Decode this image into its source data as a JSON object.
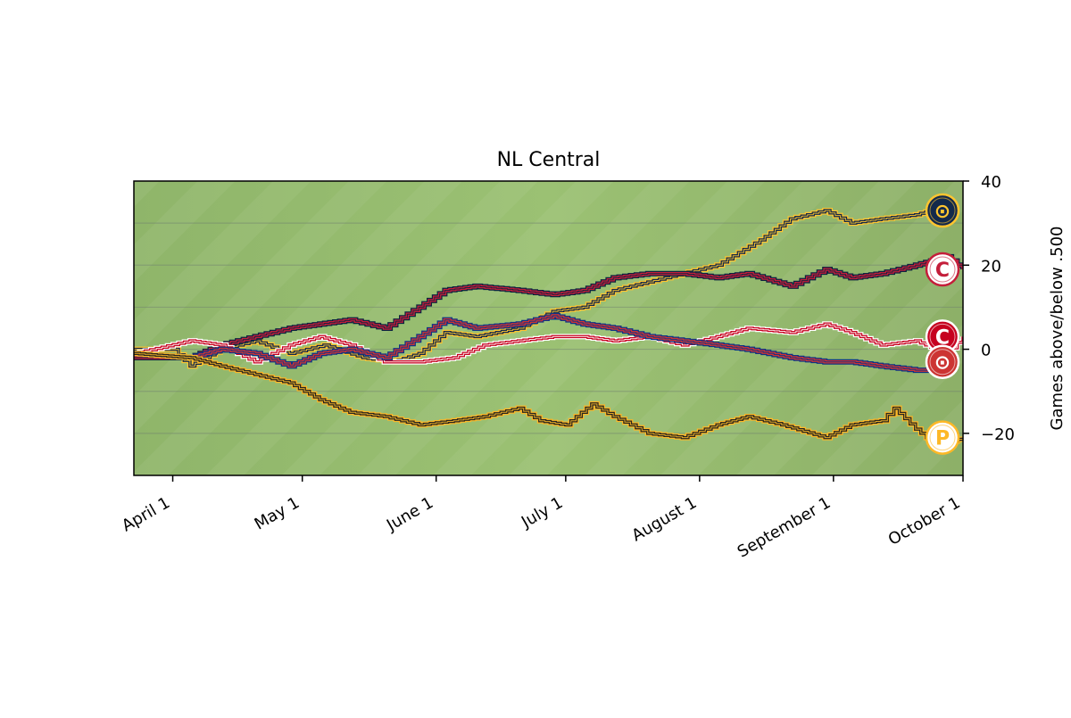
{
  "chart_data": {
    "type": "line",
    "title": "NL Central",
    "xlabel": "",
    "ylabel": "Games above/below .500",
    "ylim": [
      -30,
      40
    ],
    "xlim": [
      "2021-03-23",
      "2021-10-01"
    ],
    "y_ticks": [
      -20,
      0,
      20,
      40
    ],
    "y_tick_labels": [
      "−20",
      "0",
      "20",
      "40"
    ],
    "x_ticks": [
      {
        "date": "2021-04-01",
        "label": "April  1"
      },
      {
        "date": "2021-05-01",
        "label": "May  1"
      },
      {
        "date": "2021-06-01",
        "label": "June  1"
      },
      {
        "date": "2021-07-01",
        "label": "July  1"
      },
      {
        "date": "2021-08-01",
        "label": "August  1"
      },
      {
        "date": "2021-09-01",
        "label": "September  1"
      },
      {
        "date": "2021-10-01",
        "label": "October  1"
      }
    ],
    "y_axis_side": "right",
    "grid": true,
    "background": "green grass field",
    "series": [
      {
        "team": "brewers",
        "colors": {
          "main": "#13294b",
          "accent": "#ffc52f"
        },
        "points": [
          [
            "2021-03-23",
            0
          ],
          [
            "2021-04-01",
            0
          ],
          [
            "2021-04-05",
            -4
          ],
          [
            "2021-04-12",
            0
          ],
          [
            "2021-04-20",
            2
          ],
          [
            "2021-04-28",
            -1
          ],
          [
            "2021-05-06",
            1
          ],
          [
            "2021-05-15",
            -2
          ],
          [
            "2021-05-22",
            -3
          ],
          [
            "2021-05-28",
            -1
          ],
          [
            "2021-06-03",
            4
          ],
          [
            "2021-06-10",
            3
          ],
          [
            "2021-06-20",
            5
          ],
          [
            "2021-06-28",
            9
          ],
          [
            "2021-07-05",
            10
          ],
          [
            "2021-07-12",
            14
          ],
          [
            "2021-07-20",
            16
          ],
          [
            "2021-07-28",
            18
          ],
          [
            "2021-08-05",
            20
          ],
          [
            "2021-08-15",
            26
          ],
          [
            "2021-08-22",
            31
          ],
          [
            "2021-08-30",
            33
          ],
          [
            "2021-09-05",
            30
          ],
          [
            "2021-09-12",
            31
          ],
          [
            "2021-09-20",
            32
          ],
          [
            "2021-09-27",
            34
          ]
        ]
      },
      {
        "team": "cardinals",
        "colors": {
          "main": "#c41e3a",
          "accent": "#0c2340"
        },
        "points": [
          [
            "2021-03-23",
            -2
          ],
          [
            "2021-04-05",
            -2
          ],
          [
            "2021-04-12",
            1
          ],
          [
            "2021-04-20",
            3
          ],
          [
            "2021-04-28",
            5
          ],
          [
            "2021-05-05",
            6
          ],
          [
            "2021-05-12",
            7
          ],
          [
            "2021-05-20",
            5
          ],
          [
            "2021-05-28",
            10
          ],
          [
            "2021-06-03",
            14
          ],
          [
            "2021-06-10",
            15
          ],
          [
            "2021-06-20",
            14
          ],
          [
            "2021-06-28",
            13
          ],
          [
            "2021-07-05",
            14
          ],
          [
            "2021-07-12",
            17
          ],
          [
            "2021-07-20",
            18
          ],
          [
            "2021-07-28",
            18
          ],
          [
            "2021-08-05",
            17
          ],
          [
            "2021-08-12",
            18
          ],
          [
            "2021-08-22",
            15
          ],
          [
            "2021-08-30",
            19
          ],
          [
            "2021-09-05",
            17
          ],
          [
            "2021-09-12",
            18
          ],
          [
            "2021-09-20",
            20
          ],
          [
            "2021-09-27",
            22
          ],
          [
            "2021-10-01",
            19
          ]
        ]
      },
      {
        "team": "reds",
        "colors": {
          "main": "#c6011f",
          "accent": "#ffffff"
        },
        "points": [
          [
            "2021-03-23",
            -1
          ],
          [
            "2021-04-05",
            2
          ],
          [
            "2021-04-12",
            1
          ],
          [
            "2021-04-20",
            -3
          ],
          [
            "2021-04-28",
            1
          ],
          [
            "2021-05-05",
            3
          ],
          [
            "2021-05-12",
            1
          ],
          [
            "2021-05-20",
            -3
          ],
          [
            "2021-05-28",
            -3
          ],
          [
            "2021-06-05",
            -2
          ],
          [
            "2021-06-12",
            1
          ],
          [
            "2021-06-20",
            2
          ],
          [
            "2021-06-28",
            3
          ],
          [
            "2021-07-05",
            3
          ],
          [
            "2021-07-12",
            2
          ],
          [
            "2021-07-20",
            3
          ],
          [
            "2021-07-28",
            1
          ],
          [
            "2021-08-05",
            3
          ],
          [
            "2021-08-12",
            5
          ],
          [
            "2021-08-22",
            4
          ],
          [
            "2021-08-30",
            6
          ],
          [
            "2021-09-05",
            4
          ],
          [
            "2021-09-12",
            1
          ],
          [
            "2021-09-20",
            2
          ],
          [
            "2021-09-27",
            -1
          ],
          [
            "2021-10-01",
            3
          ]
        ]
      },
      {
        "team": "cubs",
        "colors": {
          "main": "#cc3433",
          "accent": "#0e3386"
        },
        "points": [
          [
            "2021-03-23",
            -1
          ],
          [
            "2021-04-05",
            -2
          ],
          [
            "2021-04-12",
            0
          ],
          [
            "2021-04-20",
            -1
          ],
          [
            "2021-04-28",
            -4
          ],
          [
            "2021-05-05",
            -1
          ],
          [
            "2021-05-12",
            0
          ],
          [
            "2021-05-20",
            -2
          ],
          [
            "2021-05-28",
            3
          ],
          [
            "2021-06-03",
            7
          ],
          [
            "2021-06-10",
            5
          ],
          [
            "2021-06-20",
            6
          ],
          [
            "2021-06-28",
            8
          ],
          [
            "2021-07-05",
            6
          ],
          [
            "2021-07-12",
            5
          ],
          [
            "2021-07-20",
            3
          ],
          [
            "2021-07-28",
            2
          ],
          [
            "2021-08-05",
            1
          ],
          [
            "2021-08-12",
            0
          ],
          [
            "2021-08-22",
            -2
          ],
          [
            "2021-08-30",
            -3
          ],
          [
            "2021-09-05",
            -3
          ],
          [
            "2021-09-12",
            -4
          ],
          [
            "2021-09-20",
            -5
          ],
          [
            "2021-09-27",
            -5
          ]
        ]
      },
      {
        "team": "pirates",
        "colors": {
          "main": "#27251f",
          "accent": "#fdb827"
        },
        "points": [
          [
            "2021-03-23",
            -1
          ],
          [
            "2021-04-05",
            -2
          ],
          [
            "2021-04-12",
            -4
          ],
          [
            "2021-04-20",
            -6
          ],
          [
            "2021-04-28",
            -8
          ],
          [
            "2021-05-05",
            -12
          ],
          [
            "2021-05-12",
            -15
          ],
          [
            "2021-05-20",
            -16
          ],
          [
            "2021-05-28",
            -18
          ],
          [
            "2021-06-05",
            -17
          ],
          [
            "2021-06-12",
            -16
          ],
          [
            "2021-06-20",
            -14
          ],
          [
            "2021-06-25",
            -17
          ],
          [
            "2021-07-01",
            -18
          ],
          [
            "2021-07-07",
            -13
          ],
          [
            "2021-07-12",
            -16
          ],
          [
            "2021-07-20",
            -20
          ],
          [
            "2021-07-28",
            -21
          ],
          [
            "2021-08-05",
            -18
          ],
          [
            "2021-08-12",
            -16
          ],
          [
            "2021-08-20",
            -18
          ],
          [
            "2021-08-30",
            -21
          ],
          [
            "2021-09-05",
            -18
          ],
          [
            "2021-09-12",
            -17
          ],
          [
            "2021-09-15",
            -14
          ],
          [
            "2021-09-20",
            -19
          ],
          [
            "2021-09-25",
            -23
          ],
          [
            "2021-10-01",
            -21
          ]
        ]
      }
    ],
    "team_logos": [
      {
        "team": "brewers",
        "y": 33,
        "glyph": "⊙",
        "icon": "brewers-logo-icon",
        "colors": {
          "bg": "#13294b",
          "fg": "#ffc52f"
        }
      },
      {
        "team": "cardinals",
        "y": 19,
        "glyph": "C",
        "icon": "cardinals-logo-icon",
        "colors": {
          "bg": "#ffffff",
          "fg": "#c41e3a"
        }
      },
      {
        "team": "reds",
        "y": 3,
        "glyph": "C",
        "icon": "reds-logo-icon",
        "colors": {
          "bg": "#c6011f",
          "fg": "#ffffff"
        }
      },
      {
        "team": "cubs",
        "y": -3,
        "glyph": "⊙",
        "icon": "cubs-logo-icon",
        "colors": {
          "bg": "#cc3433",
          "fg": "#ffffff"
        }
      },
      {
        "team": "pirates",
        "y": -21,
        "glyph": "P",
        "icon": "pirates-logo-icon",
        "colors": {
          "bg": "#ffffff",
          "fg": "#fdb827"
        }
      }
    ]
  }
}
